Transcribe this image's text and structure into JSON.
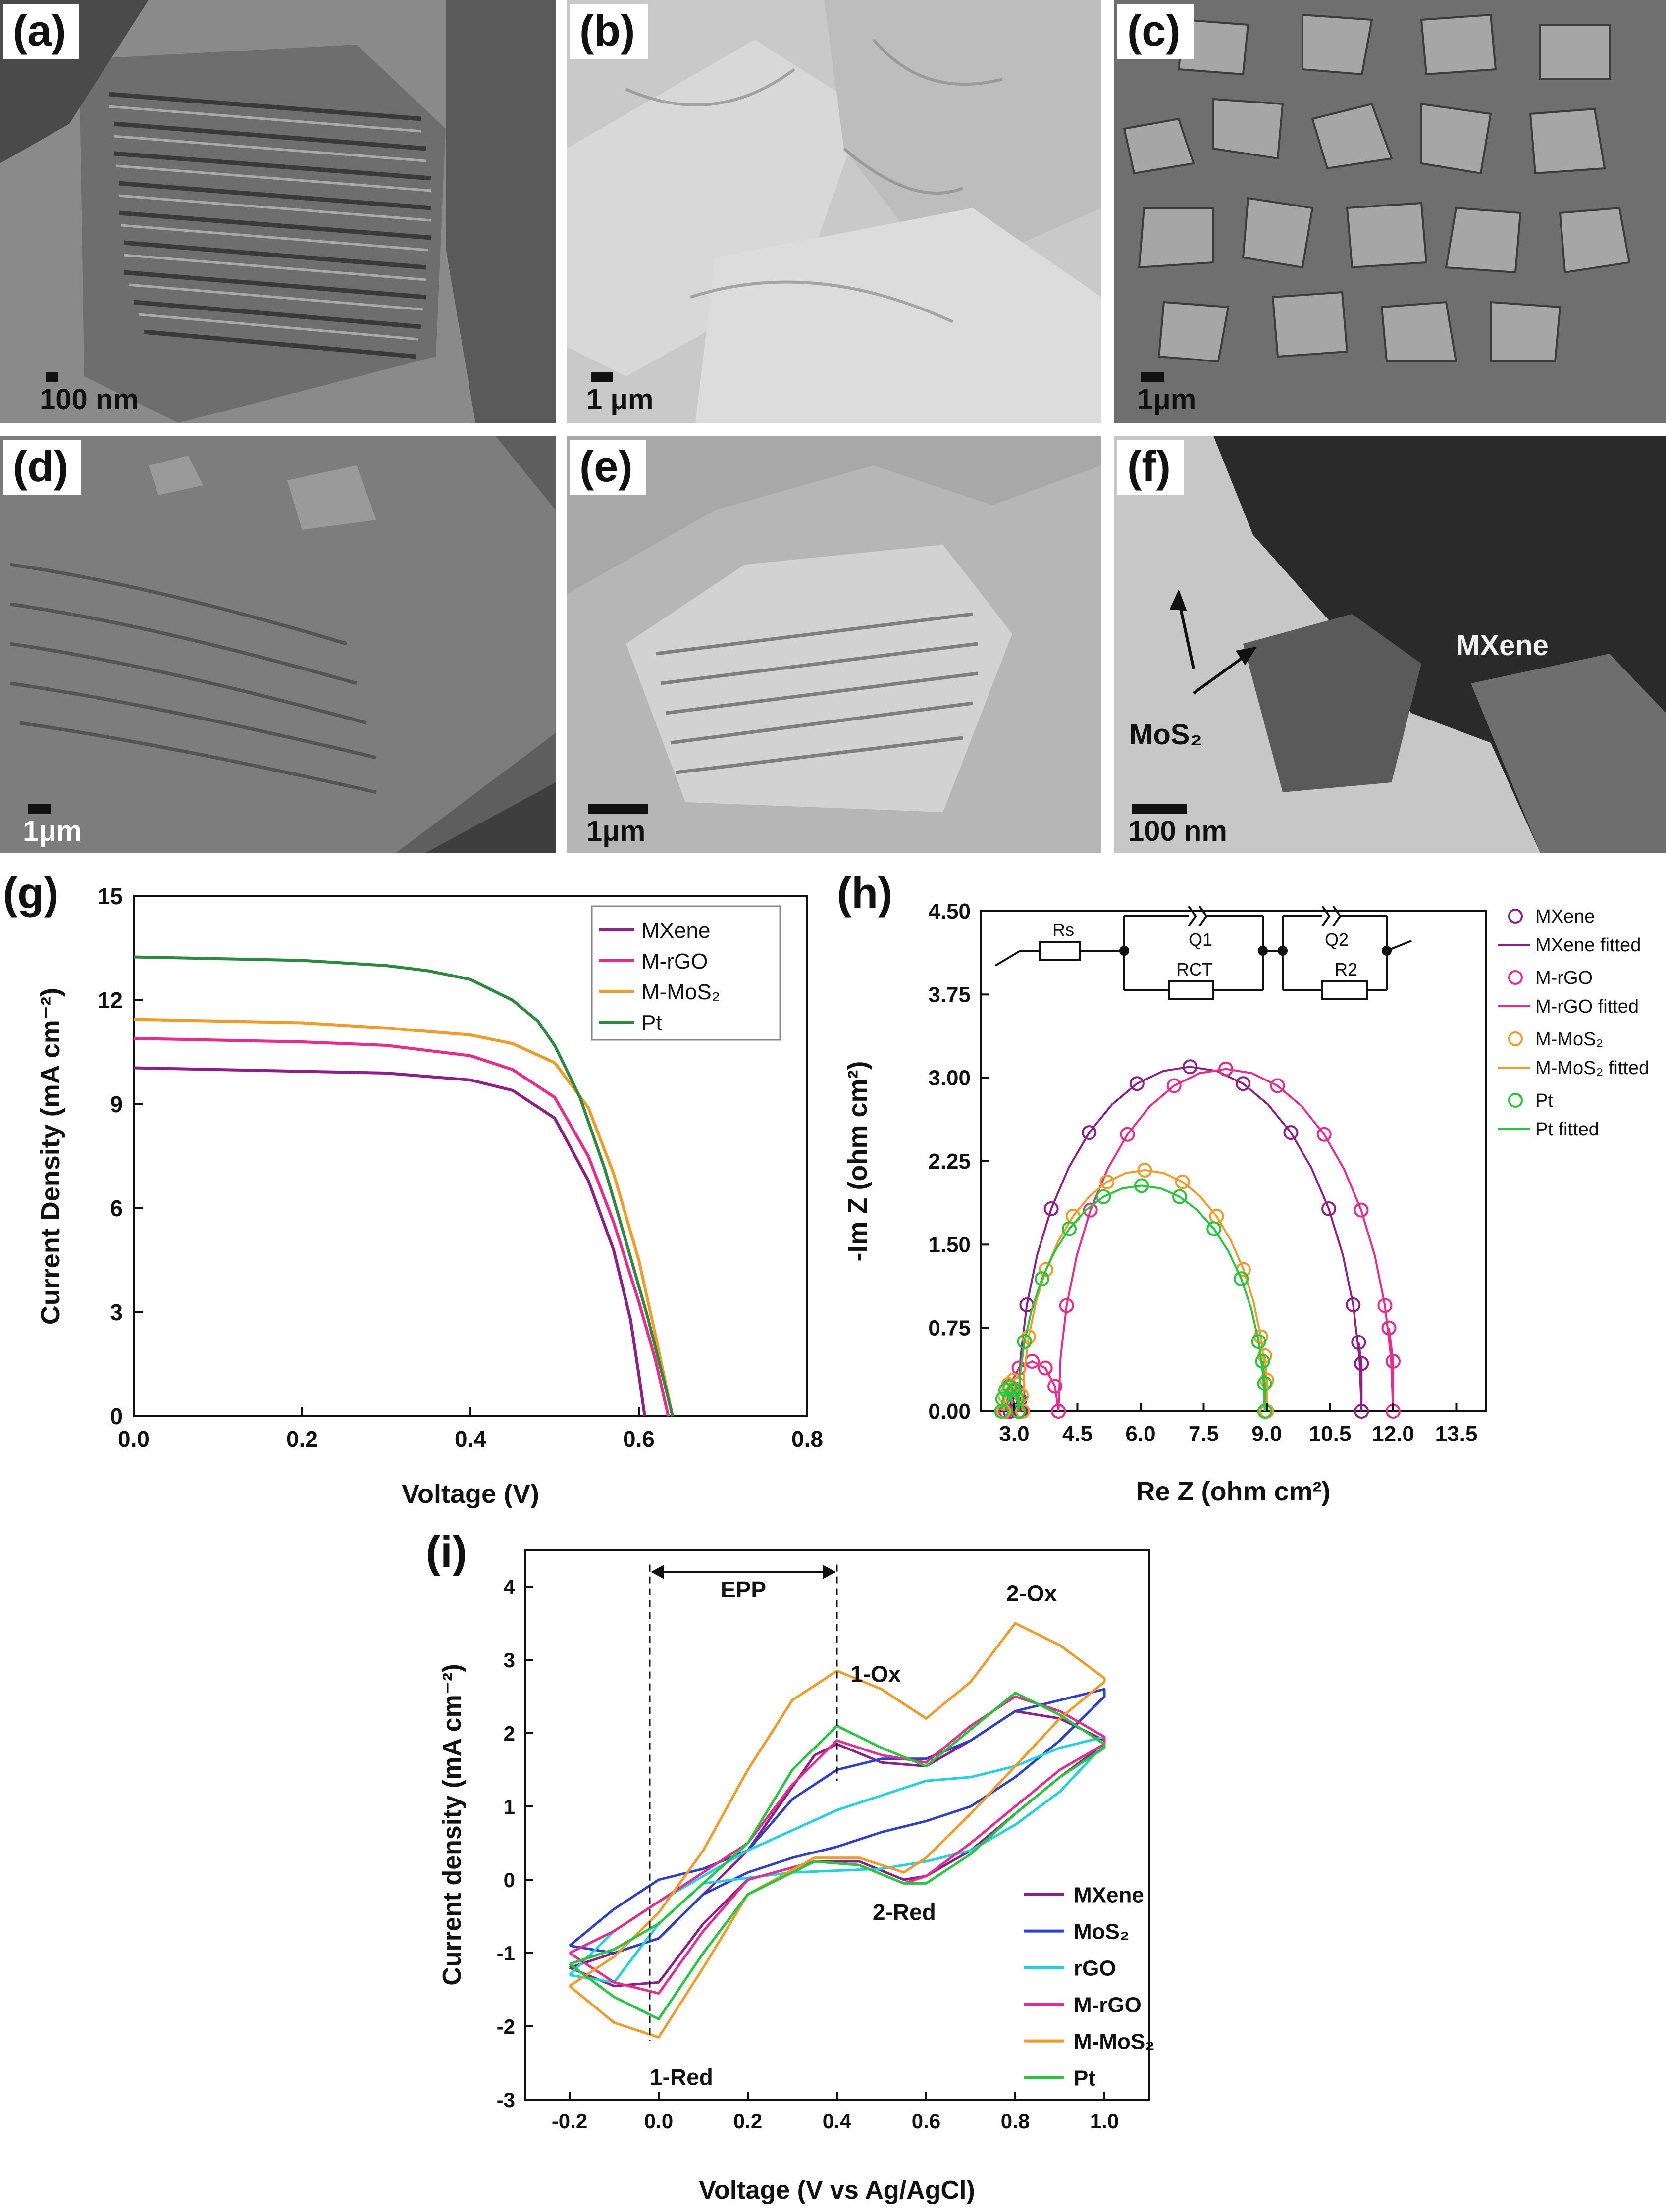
{
  "micrographs": [
    {
      "id": "a",
      "label": "(a)",
      "scale": "100 nm"
    },
    {
      "id": "b",
      "label": "(b)",
      "scale": "1 μm"
    },
    {
      "id": "c",
      "label": "(c)",
      "scale": "1μm"
    },
    {
      "id": "d",
      "label": "(d)",
      "scale": "1μm"
    },
    {
      "id": "e",
      "label": "(e)",
      "scale": "1μm"
    },
    {
      "id": "f",
      "label": "(f)",
      "scale": "100 nm",
      "annotations": [
        "MXene",
        "MoS₂"
      ]
    }
  ],
  "chart_data": [
    {
      "id": "g",
      "panel_label": "(g)",
      "type": "line",
      "xlabel": "Voltage (V)",
      "ylabel": "Current Density (mA cm⁻²)",
      "xlim": [
        0.0,
        0.8
      ],
      "ylim": [
        0,
        15
      ],
      "xticks": [
        "0.0",
        "0.2",
        "0.4",
        "0.6",
        "0.8"
      ],
      "yticks": [
        "0",
        "3",
        "6",
        "9",
        "12",
        "15"
      ],
      "legend_position": "top-right",
      "series": [
        {
          "name": "MXene",
          "color": "#8e1f8a",
          "x": [
            0.0,
            0.1,
            0.2,
            0.3,
            0.4,
            0.45,
            0.5,
            0.54,
            0.57,
            0.59,
            0.6,
            0.607
          ],
          "y": [
            10.05,
            10.0,
            9.95,
            9.9,
            9.7,
            9.4,
            8.6,
            6.8,
            4.8,
            2.8,
            1.2,
            0.0
          ]
        },
        {
          "name": "M-rGO",
          "color": "#ec2a8e",
          "x": [
            0.0,
            0.1,
            0.2,
            0.3,
            0.4,
            0.45,
            0.5,
            0.54,
            0.57,
            0.6,
            0.62,
            0.635
          ],
          "y": [
            10.9,
            10.85,
            10.8,
            10.7,
            10.4,
            10.0,
            9.2,
            7.5,
            5.6,
            3.3,
            1.6,
            0.0
          ]
        },
        {
          "name": "M-MoS₂",
          "color": "#f59a25",
          "x": [
            0.0,
            0.1,
            0.2,
            0.3,
            0.4,
            0.45,
            0.5,
            0.54,
            0.57,
            0.6,
            0.62,
            0.64
          ],
          "y": [
            11.45,
            11.4,
            11.35,
            11.2,
            11.0,
            10.75,
            10.2,
            8.9,
            7.0,
            4.5,
            2.3,
            0.0
          ]
        },
        {
          "name": "Pt",
          "color": "#2b8a3e",
          "x": [
            0.0,
            0.1,
            0.2,
            0.3,
            0.35,
            0.4,
            0.45,
            0.48,
            0.5,
            0.53,
            0.56,
            0.59,
            0.61,
            0.63,
            0.64
          ],
          "y": [
            13.25,
            13.2,
            13.15,
            13.0,
            12.85,
            12.6,
            12.0,
            11.4,
            10.7,
            9.2,
            7.1,
            4.6,
            2.9,
            1.0,
            0.0
          ]
        }
      ]
    },
    {
      "id": "h",
      "panel_label": "(h)",
      "type": "scatter",
      "xlabel": "Re Z (ohm cm²)",
      "ylabel": "-Im Z (ohm cm²)",
      "xlim": [
        2.2,
        14.2
      ],
      "ylim": [
        0,
        4.5
      ],
      "xticks": [
        "3.0",
        "4.5",
        "6.0",
        "7.5",
        "9.0",
        "10.5",
        "12.0",
        "13.5"
      ],
      "yticks": [
        "0.00",
        "0.75",
        "1.50",
        "2.25",
        "3.00",
        "3.75",
        "4.50"
      ],
      "legend_position": "top-right",
      "circuit_labels": [
        "Rs",
        "Q1",
        "RCT",
        "Q2",
        "R2"
      ],
      "series": [
        {
          "name": "MXene",
          "fit_name": "MXene fitted",
          "color": "#8e1f8a",
          "arcs": [
            {
              "x_start": 2.9,
              "x_end": 3.15,
              "height": 0.2
            },
            {
              "x_start": 3.1,
              "x_end": 11.25,
              "height": 3.1
            }
          ],
          "tail": [
            [
              11.25,
              0.43
            ],
            [
              11.18,
              0.62
            ]
          ]
        },
        {
          "name": "M-rGO",
          "fit_name": "M-rGO fitted",
          "color": "#ec2a8e",
          "arcs": [
            {
              "x_start": 2.8,
              "x_end": 4.05,
              "height": 0.45
            },
            {
              "x_start": 4.05,
              "x_end": 12.0,
              "height": 3.08
            }
          ],
          "tail": [
            [
              12.0,
              0.45
            ],
            [
              11.9,
              0.75
            ]
          ]
        },
        {
          "name": "M-MoS₂",
          "fit_name": "M-MoS₂ fitted",
          "color": "#f59a25",
          "arcs": [
            {
              "x_start": 2.75,
              "x_end": 3.2,
              "height": 0.28
            },
            {
              "x_start": 3.2,
              "x_end": 9.0,
              "height": 2.17
            }
          ],
          "tail": [
            [
              9.0,
              0.28
            ],
            [
              8.95,
              0.5
            ]
          ]
        },
        {
          "name": "Pt",
          "fit_name": "Pt fitted",
          "color": "#22c93a",
          "arcs": [
            {
              "x_start": 2.7,
              "x_end": 3.1,
              "height": 0.22
            },
            {
              "x_start": 3.1,
              "x_end": 8.95,
              "height": 2.03
            }
          ],
          "tail": [
            [
              8.95,
              0.25
            ],
            [
              8.9,
              0.45
            ]
          ]
        }
      ]
    },
    {
      "id": "i",
      "panel_label": "(i)",
      "type": "line",
      "xlabel": "Voltage (V vs Ag/AgCl)",
      "ylabel": "Current density (mA cm⁻²)",
      "xlim": [
        -0.3,
        1.1
      ],
      "ylim": [
        -3,
        4.5
      ],
      "xticks": [
        "-0.2",
        "0.0",
        "0.2",
        "0.4",
        "0.6",
        "0.8",
        "1.0"
      ],
      "yticks": [
        "-3",
        "-2",
        "-1",
        "0",
        "1",
        "2",
        "3",
        "4"
      ],
      "legend_position": "bottom-right",
      "annotations": {
        "epp": "EPP",
        "ox1": "1-Ox",
        "ox2": "2-Ox",
        "red1": "1-Red",
        "red2": "2-Red"
      },
      "series": [
        {
          "name": "MXene",
          "color": "#8e1f8a",
          "anodic": [
            [
              -0.2,
              -1.2
            ],
            [
              0.0,
              -0.8
            ],
            [
              0.2,
              0.4
            ],
            [
              0.35,
              1.7
            ],
            [
              0.4,
              1.85
            ],
            [
              0.5,
              1.6
            ],
            [
              0.6,
              1.55
            ],
            [
              0.7,
              1.9
            ],
            [
              0.8,
              2.3
            ],
            [
              0.9,
              2.2
            ],
            [
              1.0,
              1.9
            ]
          ],
          "cathodic": [
            [
              1.0,
              1.85
            ],
            [
              0.9,
              1.4
            ],
            [
              0.8,
              0.9
            ],
            [
              0.7,
              0.4
            ],
            [
              0.6,
              0.05
            ],
            [
              0.55,
              0.0
            ],
            [
              0.45,
              0.25
            ],
            [
              0.35,
              0.25
            ],
            [
              0.2,
              0.0
            ],
            [
              0.1,
              -0.6
            ],
            [
              0.0,
              -1.4
            ],
            [
              -0.1,
              -1.45
            ],
            [
              -0.2,
              -1.2
            ]
          ]
        },
        {
          "name": "MoS₂",
          "color": "#2b3fd6",
          "anodic": [
            [
              -0.2,
              -0.9
            ],
            [
              -0.1,
              -0.4
            ],
            [
              0.0,
              0.0
            ],
            [
              0.1,
              0.15
            ],
            [
              0.2,
              0.4
            ],
            [
              0.3,
              1.1
            ],
            [
              0.4,
              1.5
            ],
            [
              0.5,
              1.65
            ],
            [
              0.6,
              1.65
            ],
            [
              0.7,
              1.9
            ],
            [
              0.8,
              2.3
            ],
            [
              0.9,
              2.45
            ],
            [
              1.0,
              2.6
            ]
          ],
          "cathodic": [
            [
              1.0,
              2.5
            ],
            [
              0.9,
              1.9
            ],
            [
              0.8,
              1.4
            ],
            [
              0.7,
              1.0
            ],
            [
              0.6,
              0.8
            ],
            [
              0.5,
              0.65
            ],
            [
              0.4,
              0.45
            ],
            [
              0.3,
              0.3
            ],
            [
              0.2,
              0.1
            ],
            [
              0.1,
              -0.2
            ],
            [
              0.0,
              -0.8
            ],
            [
              -0.1,
              -1.0
            ],
            [
              -0.2,
              -0.9
            ]
          ]
        },
        {
          "name": "rGO",
          "color": "#1fd2e6",
          "anodic": [
            [
              -0.2,
              -1.3
            ],
            [
              -0.1,
              -0.7
            ],
            [
              0.0,
              -0.3
            ],
            [
              0.2,
              0.4
            ],
            [
              0.4,
              0.95
            ],
            [
              0.6,
              1.35
            ],
            [
              0.7,
              1.4
            ],
            [
              0.8,
              1.55
            ],
            [
              0.9,
              1.8
            ],
            [
              1.0,
              1.95
            ]
          ],
          "cathodic": [
            [
              1.0,
              1.85
            ],
            [
              0.9,
              1.2
            ],
            [
              0.8,
              0.75
            ],
            [
              0.7,
              0.4
            ],
            [
              0.6,
              0.25
            ],
            [
              0.5,
              0.15
            ],
            [
              0.3,
              0.1
            ],
            [
              0.1,
              -0.05
            ],
            [
              0.0,
              -0.6
            ],
            [
              -0.1,
              -1.4
            ],
            [
              -0.2,
              -1.3
            ]
          ]
        },
        {
          "name": "M-rGO",
          "color": "#ec2a8e",
          "anodic": [
            [
              -0.2,
              -1.0
            ],
            [
              -0.1,
              -0.7
            ],
            [
              0.0,
              -0.3
            ],
            [
              0.2,
              0.5
            ],
            [
              0.3,
              1.3
            ],
            [
              0.4,
              1.9
            ],
            [
              0.5,
              1.7
            ],
            [
              0.6,
              1.6
            ],
            [
              0.7,
              2.1
            ],
            [
              0.8,
              2.5
            ],
            [
              0.9,
              2.3
            ],
            [
              1.0,
              1.95
            ]
          ],
          "cathodic": [
            [
              1.0,
              1.85
            ],
            [
              0.9,
              1.5
            ],
            [
              0.8,
              1.0
            ],
            [
              0.7,
              0.5
            ],
            [
              0.6,
              0.05
            ],
            [
              0.55,
              -0.05
            ],
            [
              0.45,
              0.2
            ],
            [
              0.35,
              0.25
            ],
            [
              0.2,
              0.0
            ],
            [
              0.1,
              -0.7
            ],
            [
              0.0,
              -1.55
            ],
            [
              -0.1,
              -1.4
            ],
            [
              -0.2,
              -1.0
            ]
          ]
        },
        {
          "name": "M-MoS₂",
          "color": "#f59a25",
          "anodic": [
            [
              -0.2,
              -1.45
            ],
            [
              -0.1,
              -1.05
            ],
            [
              0.0,
              -0.45
            ],
            [
              0.1,
              0.4
            ],
            [
              0.2,
              1.5
            ],
            [
              0.3,
              2.45
            ],
            [
              0.4,
              2.85
            ],
            [
              0.5,
              2.6
            ],
            [
              0.6,
              2.2
            ],
            [
              0.7,
              2.7
            ],
            [
              0.8,
              3.5
            ],
            [
              0.9,
              3.2
            ],
            [
              1.0,
              2.75
            ]
          ],
          "cathodic": [
            [
              1.0,
              2.7
            ],
            [
              0.9,
              2.2
            ],
            [
              0.8,
              1.55
            ],
            [
              0.7,
              0.9
            ],
            [
              0.6,
              0.3
            ],
            [
              0.55,
              0.1
            ],
            [
              0.45,
              0.3
            ],
            [
              0.35,
              0.3
            ],
            [
              0.2,
              -0.2
            ],
            [
              0.1,
              -1.2
            ],
            [
              0.0,
              -2.15
            ],
            [
              -0.1,
              -1.95
            ],
            [
              -0.2,
              -1.45
            ]
          ]
        },
        {
          "name": "Pt",
          "color": "#22c93a",
          "anodic": [
            [
              -0.2,
              -1.15
            ],
            [
              -0.1,
              -0.95
            ],
            [
              0.0,
              -0.6
            ],
            [
              0.2,
              0.5
            ],
            [
              0.3,
              1.5
            ],
            [
              0.4,
              2.1
            ],
            [
              0.5,
              1.8
            ],
            [
              0.6,
              1.55
            ],
            [
              0.7,
              2.05
            ],
            [
              0.8,
              2.55
            ],
            [
              0.9,
              2.25
            ],
            [
              1.0,
              1.85
            ]
          ],
          "cathodic": [
            [
              1.0,
              1.8
            ],
            [
              0.9,
              1.4
            ],
            [
              0.8,
              0.9
            ],
            [
              0.7,
              0.35
            ],
            [
              0.6,
              -0.05
            ],
            [
              0.55,
              -0.05
            ],
            [
              0.45,
              0.2
            ],
            [
              0.35,
              0.25
            ],
            [
              0.2,
              -0.2
            ],
            [
              0.1,
              -1.0
            ],
            [
              0.0,
              -1.9
            ],
            [
              -0.1,
              -1.6
            ],
            [
              -0.2,
              -1.15
            ]
          ]
        }
      ]
    }
  ]
}
